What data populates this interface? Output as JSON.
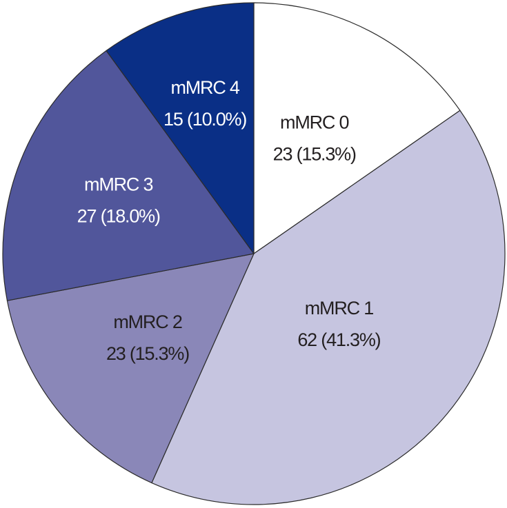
{
  "chart_data": {
    "type": "pie",
    "title": "",
    "start_angle_deg": 0,
    "direction": "clockwise",
    "slices": [
      {
        "label": "mMRC 0",
        "value": 23,
        "value_text": "23 (15.3%)",
        "color": "#ffffff",
        "text_color": "#231f20"
      },
      {
        "label": "mMRC 1",
        "value": 62,
        "value_text": "62 (41.3%)",
        "color": "#c6c5e0",
        "text_color": "#231f20"
      },
      {
        "label": "mMRC 2",
        "value": 23,
        "value_text": "23 (15.3%)",
        "color": "#8a87b8",
        "text_color": "#231f20"
      },
      {
        "label": "mMRC 3",
        "value": 27,
        "value_text": "27 (18.0%)",
        "color": "#51569b",
        "text_color": "#ffffff"
      },
      {
        "label": "mMRC 4",
        "value": 15,
        "value_text": "15 (10.0%)",
        "color": "#0a2f86",
        "text_color": "#ffffff"
      }
    ]
  }
}
